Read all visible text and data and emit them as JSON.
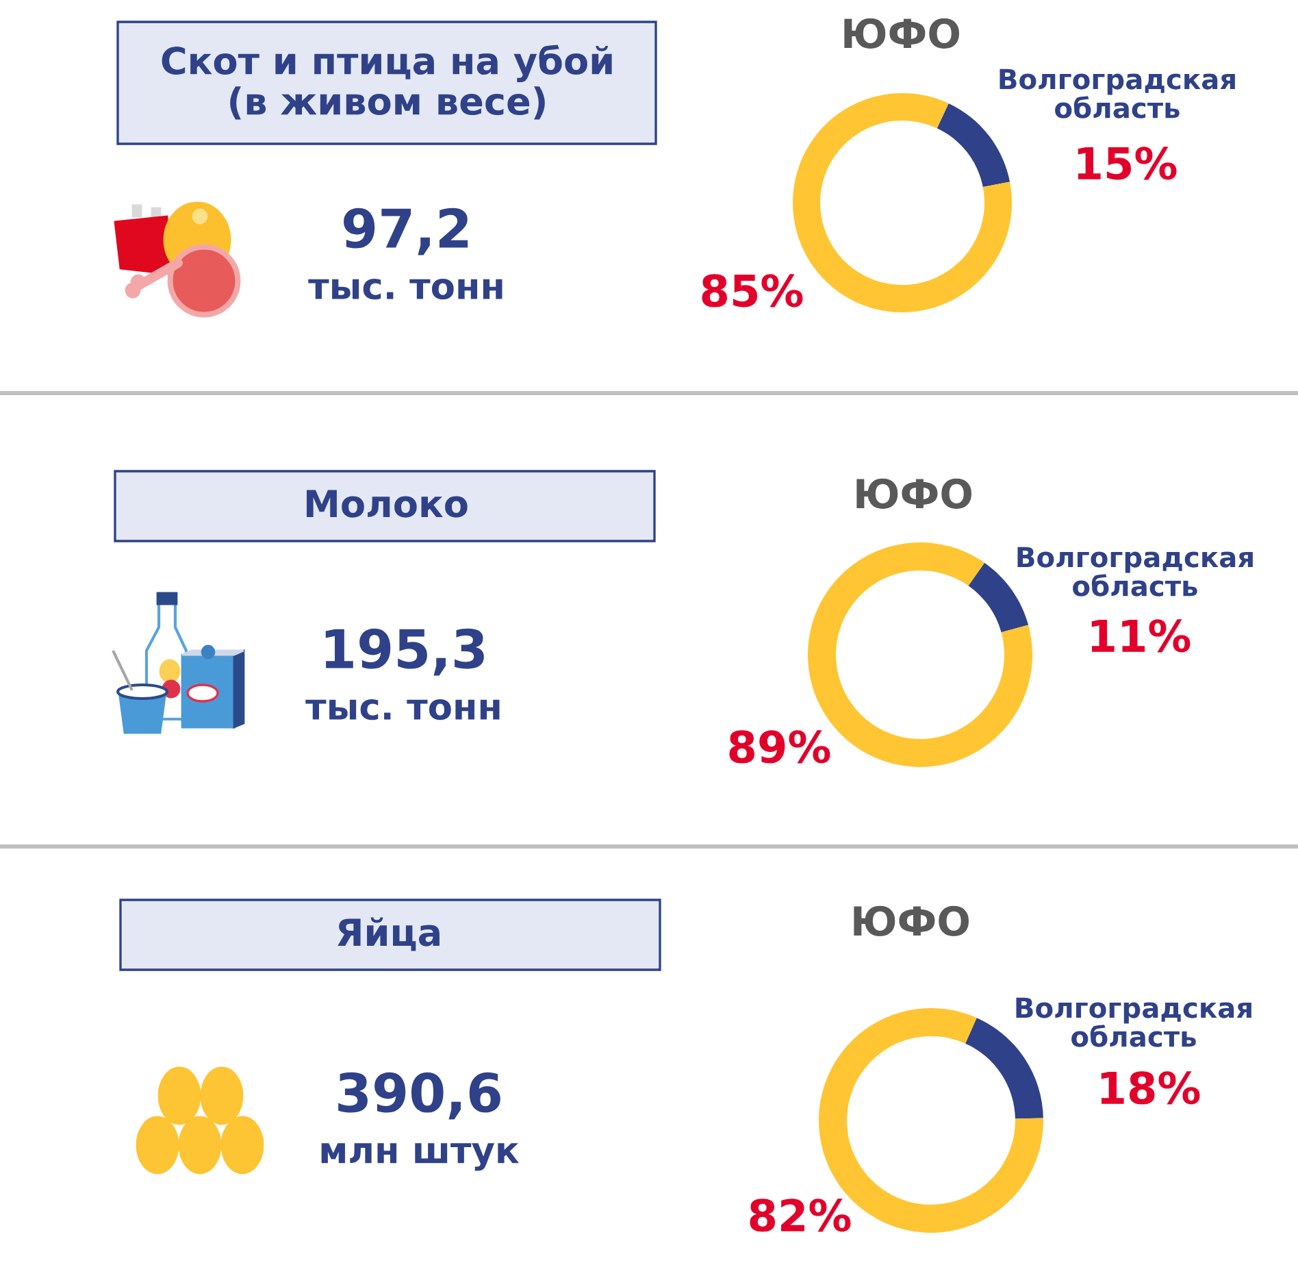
{
  "chart_data": [
    {
      "type": "other",
      "title": "Скот и птица на убой\n(в живом весе)",
      "annotations": [
        "97,2",
        "тыс. тонн"
      ]
    },
    {
      "type": "donut",
      "title": "ЮФО",
      "categories": [
        "Волгоградская\nобласть",
        null
      ],
      "values": [
        15,
        85
      ],
      "colors": [
        "#2f4188",
        "#ffc532"
      ],
      "value_labels": [
        "15%",
        "85%"
      ]
    },
    {
      "type": "other",
      "title": "Молоко",
      "annotations": [
        "195,3",
        "тыс. тонн"
      ]
    },
    {
      "type": "donut",
      "title": "ЮФО",
      "categories": [
        "Волгоградская\nобласть",
        null
      ],
      "values": [
        11,
        89
      ],
      "colors": [
        "#2f4188",
        "#ffc532"
      ],
      "value_labels": [
        "11%",
        "89%"
      ]
    },
    {
      "type": "other",
      "title": "Яйца",
      "annotations": [
        "390,6",
        "млн штук"
      ]
    },
    {
      "type": "donut",
      "title": "ЮФО",
      "categories": [
        "Волгоградская\nобласть",
        null
      ],
      "values": [
        18,
        82
      ],
      "colors": [
        "#2f4188",
        "#ffc532"
      ],
      "value_labels": [
        "18%",
        "82%"
      ]
    }
  ]
}
